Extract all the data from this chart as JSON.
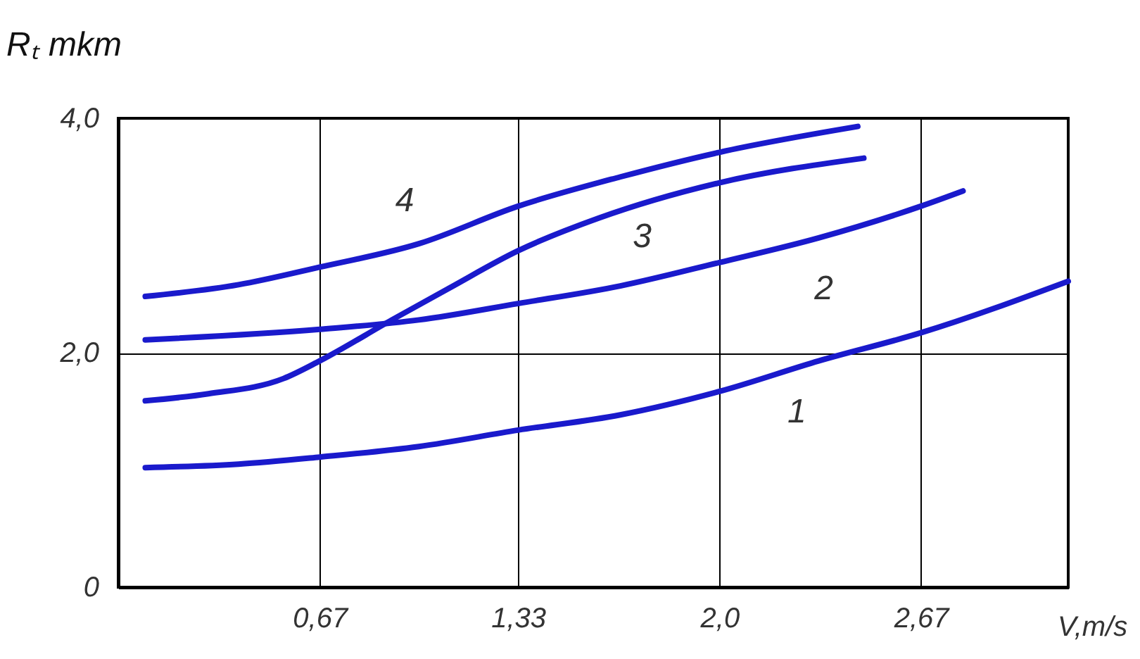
{
  "chart_data": {
    "type": "line",
    "xlabel": "V,m/s",
    "ylabel": "Rₜ mkm",
    "xlim": [
      0,
      3.16
    ],
    "ylim": [
      0,
      4.0
    ],
    "xticks": [
      {
        "value": 0.67,
        "label": "0,67"
      },
      {
        "value": 1.33,
        "label": "1,33"
      },
      {
        "value": 2.0,
        "label": "2,0"
      },
      {
        "value": 2.67,
        "label": "2,67"
      }
    ],
    "yticks": [
      0,
      {
        "value": 2.0,
        "label": "2,0"
      },
      {
        "value": 4.0,
        "label": "4,0"
      }
    ],
    "grid": true,
    "marker": "none",
    "line_style": "solid",
    "series": [
      {
        "color": "#1a1acc",
        "x": [
          0.09,
          0.4,
          0.67,
          1.0,
          1.33,
          1.67,
          2.0,
          2.33,
          2.67,
          3.16
        ],
        "values": [
          1.02,
          1.05,
          1.11,
          1.2,
          1.34,
          1.47,
          1.67,
          1.93,
          2.17,
          2.61
        ]
      },
      {
        "color": "#1a1acc",
        "x": [
          0.09,
          0.67,
          1.0,
          1.33,
          1.67,
          2.0,
          2.33,
          2.67,
          2.81
        ],
        "values": [
          2.11,
          2.2,
          2.28,
          2.42,
          2.57,
          2.77,
          2.98,
          3.25,
          3.38
        ]
      },
      {
        "color": "#1a1acc",
        "x": [
          0.09,
          0.3,
          0.55,
          0.67,
          0.91,
          1.1,
          1.33,
          1.6,
          2.0,
          2.48
        ],
        "values": [
          1.59,
          1.65,
          1.78,
          1.93,
          2.28,
          2.55,
          2.87,
          3.15,
          3.45,
          3.66
        ]
      },
      {
        "color": "#1a1acc",
        "x": [
          0.09,
          0.4,
          0.67,
          1.0,
          1.33,
          1.67,
          2.0,
          2.46
        ],
        "values": [
          2.48,
          2.58,
          2.73,
          2.93,
          3.25,
          3.5,
          3.71,
          3.93
        ]
      }
    ],
    "annotations": [
      {
        "text": "1",
        "x": 2.22,
        "y": 1.85
      },
      {
        "text": "2",
        "x": 2.3,
        "y": 2.95
      },
      {
        "text": "3",
        "x": 1.79,
        "y": 3.3
      },
      {
        "text": "4",
        "x": 1.0,
        "y": 2.93
      }
    ]
  }
}
